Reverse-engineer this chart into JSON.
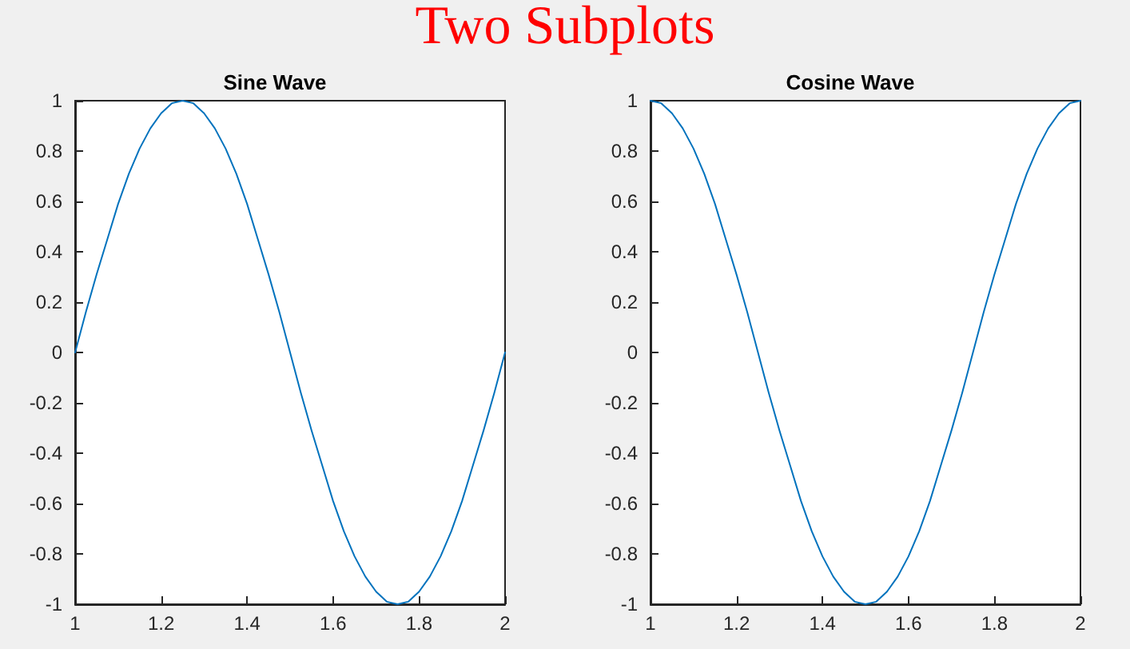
{
  "chart_data": [
    {
      "type": "line",
      "title": "Sine Wave",
      "annotations": [
        "Two Subplots"
      ],
      "x": [
        1,
        1.025,
        1.05,
        1.075,
        1.1,
        1.125,
        1.15,
        1.175,
        1.2,
        1.225,
        1.25,
        1.275,
        1.3,
        1.325,
        1.35,
        1.375,
        1.4,
        1.425,
        1.45,
        1.475,
        1.5,
        1.525,
        1.55,
        1.575,
        1.6,
        1.625,
        1.65,
        1.675,
        1.7,
        1.725,
        1.75,
        1.775,
        1.8,
        1.825,
        1.85,
        1.875,
        1.9,
        1.925,
        1.95,
        1.975,
        2
      ],
      "series": [
        {
          "color": "#0072bd",
          "values": [
            0,
            0.16,
            0.31,
            0.45,
            0.59,
            0.71,
            0.81,
            0.89,
            0.95,
            0.99,
            1,
            0.99,
            0.95,
            0.89,
            0.81,
            0.71,
            0.59,
            0.45,
            0.31,
            0.16,
            0,
            -0.16,
            -0.31,
            -0.45,
            -0.59,
            -0.71,
            -0.81,
            -0.89,
            -0.95,
            -0.99,
            -1,
            -0.99,
            -0.95,
            -0.89,
            -0.81,
            -0.71,
            -0.59,
            -0.45,
            -0.31,
            -0.16,
            0
          ]
        }
      ],
      "xlim": [
        1,
        2
      ],
      "xticks": [
        1,
        1.2,
        1.4,
        1.6,
        1.8,
        2
      ],
      "ylim": [
        -1,
        1
      ],
      "yticks": [
        -1,
        -0.8,
        -0.6,
        -0.4,
        -0.2,
        0,
        0.2,
        0.4,
        0.6,
        0.8,
        1
      ],
      "grid": false,
      "marker": "none",
      "line_style": "solid"
    },
    {
      "type": "line",
      "title": "Cosine Wave",
      "x": [
        1,
        1.025,
        1.05,
        1.075,
        1.1,
        1.125,
        1.15,
        1.175,
        1.2,
        1.225,
        1.25,
        1.275,
        1.3,
        1.325,
        1.35,
        1.375,
        1.4,
        1.425,
        1.45,
        1.475,
        1.5,
        1.525,
        1.55,
        1.575,
        1.6,
        1.625,
        1.65,
        1.675,
        1.7,
        1.725,
        1.75,
        1.775,
        1.8,
        1.825,
        1.85,
        1.875,
        1.9,
        1.925,
        1.95,
        1.975,
        2
      ],
      "series": [
        {
          "color": "#0072bd",
          "values": [
            1,
            0.99,
            0.95,
            0.89,
            0.81,
            0.71,
            0.59,
            0.45,
            0.31,
            0.16,
            0,
            -0.16,
            -0.31,
            -0.45,
            -0.59,
            -0.71,
            -0.81,
            -0.89,
            -0.95,
            -0.99,
            -1,
            -0.99,
            -0.95,
            -0.89,
            -0.81,
            -0.71,
            -0.59,
            -0.45,
            -0.31,
            -0.16,
            0,
            0.16,
            0.31,
            0.45,
            0.59,
            0.71,
            0.81,
            0.89,
            0.95,
            0.99,
            1
          ]
        }
      ],
      "xlim": [
        1,
        2
      ],
      "xticks": [
        1,
        1.2,
        1.4,
        1.6,
        1.8,
        2
      ],
      "ylim": [
        -1,
        1
      ],
      "yticks": [
        -1,
        -0.8,
        -0.6,
        -0.4,
        -0.2,
        0,
        0.2,
        0.4,
        0.6,
        0.8,
        1
      ],
      "grid": false,
      "marker": "none",
      "line_style": "solid"
    }
  ]
}
